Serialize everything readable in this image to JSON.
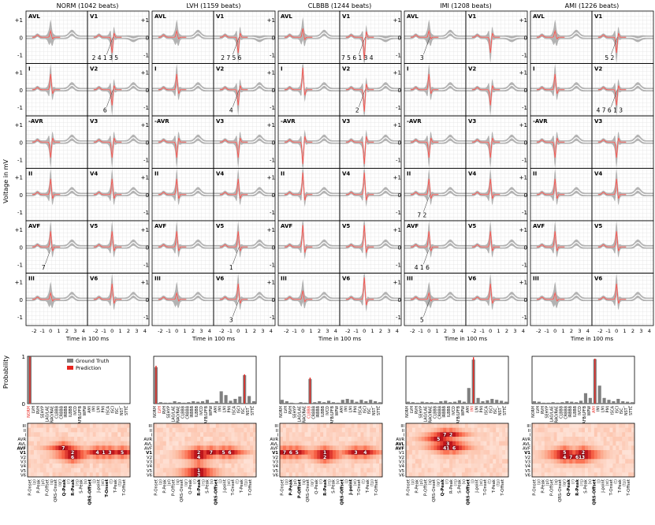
{
  "figure": {
    "ylabel_main": "Voltage in mV",
    "xlabel_main": "Time in 100 ms",
    "ylabel_prob": "Probability",
    "legend": {
      "ground_truth": "Ground Truth",
      "prediction": "Prediction"
    },
    "y_tick_labels": [
      "+1",
      "0",
      "-1"
    ],
    "x_tick_labels": [
      "-2",
      "-1",
      "0",
      "1",
      "2",
      "3",
      "4"
    ],
    "colors": {
      "ground_truth": "#808080",
      "prediction": "#e8251f",
      "band": "#a6a6a6",
      "heat_max": "#8b0000"
    }
  },
  "chart_data": {
    "type": "line",
    "classes": [
      "NORM",
      "LVH",
      "CLBBB",
      "IMI",
      "AMI"
    ],
    "panel_titles": [
      "NORM (1042 beats)",
      "LVH (1159 beats)",
      "CLBBB (1244 beats)",
      "IMI (1208 beats)",
      "AMI (1226 beats)"
    ],
    "lead_rows": [
      [
        "AVL",
        "V1"
      ],
      [
        "I",
        "V2"
      ],
      [
        "-AVR",
        "V3"
      ],
      [
        "II",
        "V4"
      ],
      [
        "AVF",
        "V5"
      ],
      [
        "III",
        "V6"
      ]
    ],
    "xlim": [
      -3,
      4.5
    ],
    "ylim": [
      -1.5,
      1.5
    ],
    "annotations": [
      {
        "panel": 0,
        "lead_row": 0,
        "col": 1,
        "text": "2 4 1 3 5"
      },
      {
        "panel": 0,
        "lead_row": 1,
        "col": 1,
        "text": "6"
      },
      {
        "panel": 0,
        "lead_row": 4,
        "col": 0,
        "text": "7"
      },
      {
        "panel": 1,
        "lead_row": 0,
        "col": 1,
        "text": "2 7 5 6"
      },
      {
        "panel": 1,
        "lead_row": 1,
        "col": 1,
        "text": "4"
      },
      {
        "panel": 1,
        "lead_row": 4,
        "col": 1,
        "text": "1"
      },
      {
        "panel": 1,
        "lead_row": 5,
        "col": 1,
        "text": "3"
      },
      {
        "panel": 2,
        "lead_row": 0,
        "col": 1,
        "text": "7 5 6 1 3 4"
      },
      {
        "panel": 2,
        "lead_row": 1,
        "col": 1,
        "text": "2"
      },
      {
        "panel": 3,
        "lead_row": 0,
        "col": 0,
        "text": "3"
      },
      {
        "panel": 3,
        "lead_row": 3,
        "col": 0,
        "text": "7 2"
      },
      {
        "panel": 3,
        "lead_row": 4,
        "col": 0,
        "text": "4 1 6"
      },
      {
        "panel": 3,
        "lead_row": 5,
        "col": 0,
        "text": "5"
      },
      {
        "panel": 4,
        "lead_row": 0,
        "col": 1,
        "text": "5 2"
      },
      {
        "panel": 4,
        "lead_row": 1,
        "col": 1,
        "text": "4 7 6 1 3"
      }
    ],
    "probability": {
      "ylim": [
        0,
        1
      ],
      "labels": [
        "NORM",
        "LVH",
        "RVH",
        "SEHYP",
        "LAO/LAE",
        "RAO/RAE",
        "CLBBB",
        "CRBBB",
        "IRBBB",
        "ILBBB",
        "IVCD",
        "LAFB/LPFB",
        "WPW",
        "AMI",
        "IMI",
        "LMI",
        "PMI",
        "ISCA",
        "ISCI",
        "ISC_",
        "NST_",
        "STTC"
      ],
      "ground_truth": [
        [
          0.99,
          0,
          0,
          0,
          0,
          0,
          0,
          0,
          0,
          0,
          0,
          0,
          0,
          0,
          0,
          0,
          0,
          0,
          0,
          0,
          0,
          0
        ],
        [
          0.77,
          0.03,
          0.02,
          0.02,
          0.05,
          0.03,
          0.02,
          0.03,
          0.05,
          0.04,
          0.05,
          0.08,
          0.02,
          0.05,
          0.26,
          0.18,
          0.06,
          0.1,
          0.15,
          0.6,
          0.16,
          0.05
        ],
        [
          0.08,
          0.05,
          0.02,
          0.01,
          0.03,
          0.02,
          0.52,
          0.03,
          0.05,
          0.03,
          0.06,
          0.03,
          0.02,
          0.08,
          0.1,
          0.08,
          0.04,
          0.08,
          0.05,
          0.08,
          0.05,
          0.03
        ],
        [
          0.04,
          0.03,
          0.02,
          0.04,
          0.03,
          0.03,
          0.02,
          0.05,
          0.06,
          0.03,
          0.04,
          0.07,
          0.04,
          0.33,
          0.93,
          0.12,
          0.05,
          0.07,
          0.1,
          0.08,
          0.06,
          0.04
        ],
        [
          0.05,
          0.04,
          0.02,
          0.02,
          0.03,
          0.02,
          0.03,
          0.05,
          0.04,
          0.03,
          0.06,
          0.22,
          0.12,
          0.94,
          0.38,
          0.12,
          0.08,
          0.05,
          0.1,
          0.05,
          0.04,
          0.03
        ]
      ],
      "prediction": [
        [
          0.99,
          0,
          0,
          0,
          0,
          0,
          0,
          0,
          0,
          0,
          0,
          0,
          0,
          0,
          0,
          0,
          0,
          0,
          0,
          0,
          0,
          0
        ],
        [
          0.8,
          0,
          0,
          0,
          0,
          0,
          0,
          0,
          0,
          0,
          0,
          0,
          0,
          0,
          0,
          0,
          0,
          0,
          0,
          0.62,
          0,
          0
        ],
        [
          0,
          0,
          0,
          0,
          0,
          0,
          0.55,
          0,
          0,
          0,
          0,
          0,
          0,
          0,
          0,
          0,
          0,
          0,
          0,
          0,
          0,
          0
        ],
        [
          0,
          0,
          0,
          0,
          0,
          0,
          0,
          0,
          0,
          0,
          0,
          0,
          0,
          0,
          0.98,
          0,
          0,
          0,
          0,
          0,
          0,
          0
        ],
        [
          0,
          0,
          0,
          0,
          0,
          0,
          0,
          0,
          0,
          0,
          0,
          0,
          0,
          0.95,
          0,
          0,
          0,
          0,
          0,
          0,
          0,
          0
        ]
      ],
      "highlight_index": [
        0,
        1,
        6,
        14,
        13
      ]
    },
    "heatmap": {
      "row_labels": [
        "III",
        "II",
        "I",
        "AVR",
        "AVL",
        "AVF",
        "V1",
        "V2",
        "V3",
        "V4",
        "V5",
        "V6"
      ],
      "col_labels": [
        "P-Onset",
        "P-Peak",
        "P-Offset",
        "QRS-Onset",
        "Q-Peak",
        "R-Peak",
        "S-Peak",
        "QRS-Offset",
        "J-point",
        "T-Onset",
        "T-Peak",
        "T-Offset"
      ],
      "col_labels_extra": [
        "(p)",
        "(pl)",
        "(q)",
        "(qr)",
        "(r)",
        "(rs)",
        "(s)",
        "(j)",
        "(st)",
        "(t)",
        "(tp)"
      ],
      "bold_rows": [
        [
          5,
          6
        ],
        [
          6
        ],
        [
          6
        ],
        [
          4,
          5
        ],
        [
          6
        ]
      ],
      "bold_cols": [
        [
          4,
          5,
          7,
          9
        ],
        [
          5,
          7
        ],
        [
          1,
          2,
          5,
          7,
          8
        ],
        [
          4,
          7
        ],
        [
          4,
          5,
          7
        ]
      ],
      "markers": [
        [
          {
            "r": 5,
            "c": 11,
            "t": "7"
          },
          {
            "r": 6,
            "c": 14,
            "t": "2"
          },
          {
            "r": 6,
            "c": 22,
            "t": "4"
          },
          {
            "r": 6,
            "c": 24,
            "t": "1"
          },
          {
            "r": 6,
            "c": 26,
            "t": "3"
          },
          {
            "r": 6,
            "c": 30,
            "t": "5"
          },
          {
            "r": 7,
            "c": 14,
            "t": "6"
          }
        ],
        [
          {
            "r": 6,
            "c": 14,
            "t": "2"
          },
          {
            "r": 6,
            "c": 18,
            "t": "7"
          },
          {
            "r": 6,
            "c": 22,
            "t": "5"
          },
          {
            "r": 6,
            "c": 24,
            "t": "6"
          },
          {
            "r": 7,
            "c": 14,
            "t": "4"
          },
          {
            "r": 10,
            "c": 14,
            "t": "1"
          },
          {
            "r": 11,
            "c": 14,
            "t": "3"
          }
        ],
        [
          {
            "r": 6,
            "c": 1,
            "t": "7"
          },
          {
            "r": 6,
            "c": 3,
            "t": "6"
          },
          {
            "r": 6,
            "c": 5,
            "t": "5"
          },
          {
            "r": 6,
            "c": 14,
            "t": "1"
          },
          {
            "r": 6,
            "c": 24,
            "t": "3"
          },
          {
            "r": 6,
            "c": 27,
            "t": "4"
          },
          {
            "r": 7,
            "c": 14,
            "t": "2"
          }
        ],
        [
          {
            "r": 2,
            "c": 12,
            "t": "7"
          },
          {
            "r": 2,
            "c": 14,
            "t": "2"
          },
          {
            "r": 3,
            "c": 10,
            "t": "5"
          },
          {
            "r": 4,
            "c": 13,
            "t": "3"
          },
          {
            "r": 5,
            "c": 12,
            "t": "4"
          },
          {
            "r": 5,
            "c": 13,
            "t": "1"
          },
          {
            "r": 5,
            "c": 15,
            "t": "6"
          }
        ],
        [
          {
            "r": 6,
            "c": 10,
            "t": "5"
          },
          {
            "r": 6,
            "c": 16,
            "t": "2"
          },
          {
            "r": 7,
            "c": 10,
            "t": "4"
          },
          {
            "r": 7,
            "c": 12,
            "t": "7"
          },
          {
            "r": 7,
            "c": 14,
            "t": "6"
          },
          {
            "r": 7,
            "c": 15,
            "t": "1"
          },
          {
            "r": 7,
            "c": 16,
            "t": "3"
          }
        ]
      ]
    }
  }
}
